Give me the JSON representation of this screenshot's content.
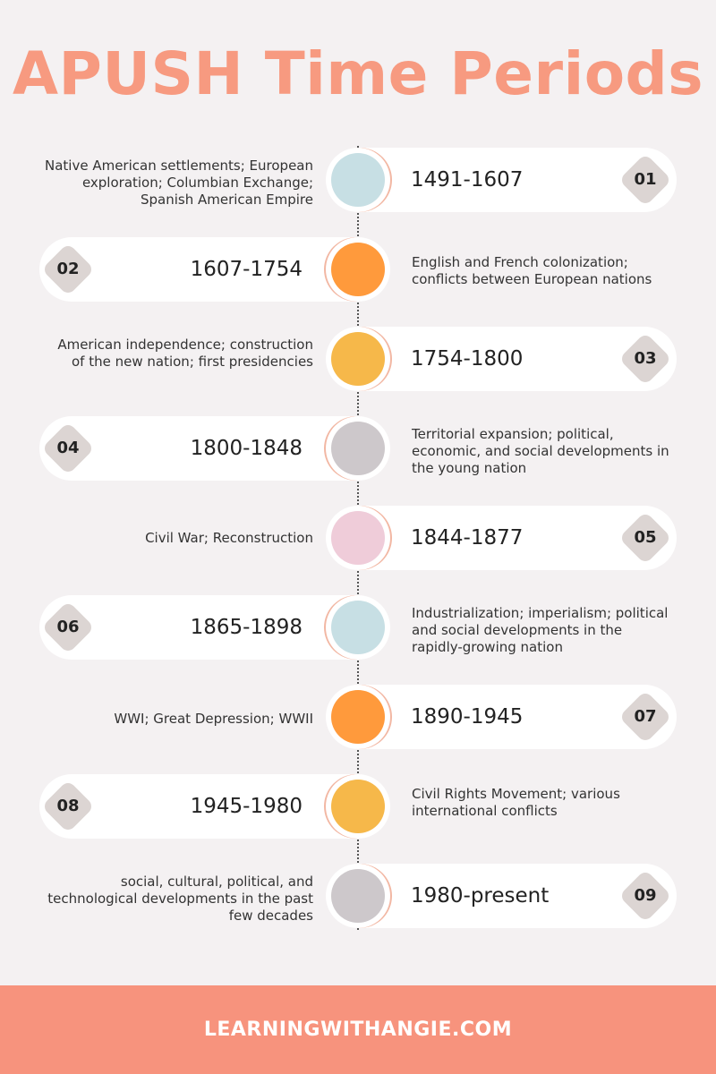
{
  "title": "APUSH Time Periods",
  "colors": {
    "title": "#f79a80",
    "footer": "#f7937d",
    "blue": "#c7dfe4",
    "orange": "#ff9a3c",
    "yellow": "#f6b84a",
    "gray": "#cdc8cb",
    "pink": "#efccd9"
  },
  "periods": [
    {
      "number": "01",
      "range": "1491-1607",
      "description": "Native American settlements; European exploration; Columbian Exchange; Spanish American Empire",
      "color": "#c7dfe4"
    },
    {
      "number": "02",
      "range": "1607-1754",
      "description": "English and French colonization; conflicts between European nations",
      "color": "#ff9a3c"
    },
    {
      "number": "03",
      "range": "1754-1800",
      "description": "American independence; construction of the new nation; first presidencies",
      "color": "#f6b84a"
    },
    {
      "number": "04",
      "range": "1800-1848",
      "description": "Territorial expansion; political, economic, and social developments in the young nation",
      "color": "#cdc8cb"
    },
    {
      "number": "05",
      "range": "1844-1877",
      "description": "Civil War; Reconstruction",
      "color": "#efccd9"
    },
    {
      "number": "06",
      "range": "1865-1898",
      "description": "Industrialization; imperialism; political and social developments in the rapidly-growing nation",
      "color": "#c7dfe4"
    },
    {
      "number": "07",
      "range": "1890-1945",
      "description": "WWI; Great Depression; WWII",
      "color": "#ff9a3c"
    },
    {
      "number": "08",
      "range": "1945-1980",
      "description": "Civil Rights Movement; various international conflicts",
      "color": "#f6b84a"
    },
    {
      "number": "09",
      "range": "1980-present",
      "description": "social, cultural, political, and technological developments in the past few decades",
      "color": "#cdc8cb"
    }
  ],
  "footer": {
    "text": "LEARNINGWITHANGIE.COM"
  }
}
